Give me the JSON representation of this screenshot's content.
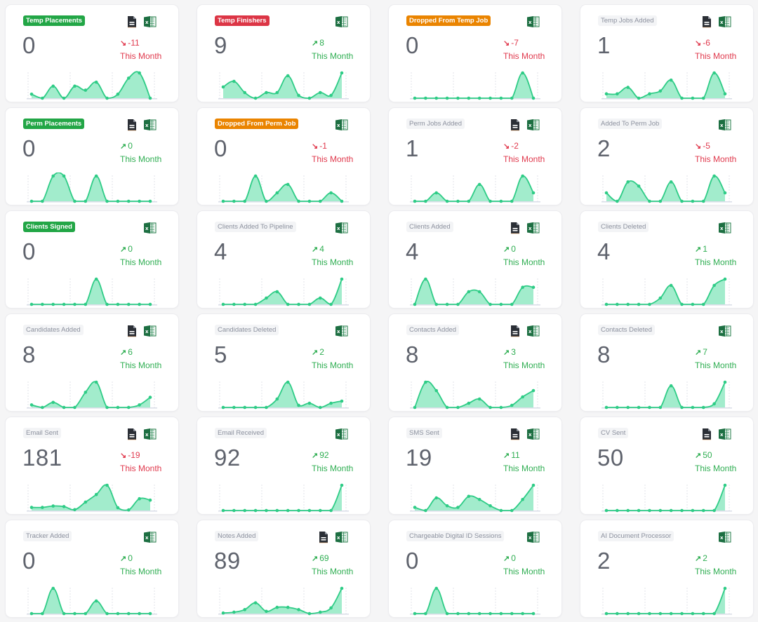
{
  "theme": {
    "badge_green": "#22a646",
    "badge_red": "#dc3545",
    "badge_orange": "#ea8400",
    "trend_up": "#2fae52",
    "trend_down": "#e0394d",
    "chart_line": "#2ecc86",
    "chart_fill": "#9debc9"
  },
  "cards": [
    {
      "title": "Temp Placements",
      "badge": "green",
      "value": "0",
      "trend_dir": "down",
      "trend_arrow": "↘",
      "trend_value": "-11",
      "period": "This Month",
      "icons": [
        "document-icon",
        "excel-icon"
      ],
      "series": [
        1,
        0,
        3,
        0,
        3,
        2,
        4,
        0,
        1,
        5,
        6.3,
        0
      ]
    },
    {
      "title": "Temp Finishers",
      "badge": "red",
      "value": "9",
      "trend_dir": "up",
      "trend_arrow": "↗",
      "trend_value": "8",
      "period": "This Month",
      "icons": [
        "excel-icon"
      ],
      "series": [
        4,
        6,
        2,
        0,
        2,
        2,
        8,
        1,
        0,
        2,
        1,
        9
      ]
    },
    {
      "title": "Dropped From Temp Job",
      "badge": "orange",
      "value": "0",
      "trend_dir": "down",
      "trend_arrow": "↘",
      "trend_value": "-7",
      "period": "This Month",
      "icons": [
        "excel-icon"
      ],
      "series": [
        0,
        0,
        0,
        0,
        0,
        0,
        0,
        0,
        0,
        0,
        7,
        0
      ]
    },
    {
      "title": "Temp Jobs Added",
      "badge": "plain",
      "value": "1",
      "trend_dir": "down",
      "trend_arrow": "↘",
      "trend_value": "-6",
      "period": "This Month",
      "icons": [
        "document-icon",
        "excel-icon"
      ],
      "series": [
        1.2,
        1.2,
        3,
        0,
        1.2,
        2,
        5,
        0,
        0,
        0,
        7,
        1.2
      ]
    },
    {
      "title": "Perm Placements",
      "badge": "green",
      "value": "0",
      "trend_dir": "up",
      "trend_arrow": "↗",
      "trend_value": "0",
      "period": "This Month",
      "icons": [
        "document-icon",
        "excel-icon"
      ],
      "series": [
        0,
        0,
        2,
        2,
        0,
        0,
        2,
        0,
        0,
        0,
        0,
        0
      ]
    },
    {
      "title": "Dropped From Perm Job",
      "badge": "orange",
      "value": "0",
      "trend_dir": "down",
      "trend_arrow": "↘",
      "trend_value": "-1",
      "period": "This Month",
      "icons": [
        "excel-icon"
      ],
      "series": [
        0,
        0,
        0,
        3,
        0,
        1,
        2,
        0,
        0,
        0,
        1,
        0
      ]
    },
    {
      "title": "Perm Jobs Added",
      "badge": "plain",
      "value": "1",
      "trend_dir": "down",
      "trend_arrow": "↘",
      "trend_value": "-2",
      "period": "This Month",
      "icons": [
        "document-icon",
        "excel-icon"
      ],
      "series": [
        0,
        0,
        1,
        0,
        0,
        0,
        2,
        0,
        0,
        0,
        3,
        1
      ]
    },
    {
      "title": "Added To Perm Job",
      "badge": "plain",
      "value": "2",
      "trend_dir": "down",
      "trend_arrow": "↘",
      "trend_value": "-5",
      "period": "This Month",
      "icons": [
        "excel-icon"
      ],
      "series": [
        1,
        0,
        2.3,
        1.8,
        0,
        0,
        2.3,
        0,
        0,
        0,
        3,
        1
      ]
    },
    {
      "title": "Clients Signed",
      "badge": "green",
      "value": "0",
      "trend_dir": "up",
      "trend_arrow": "↗",
      "trend_value": "0",
      "period": "This Month",
      "icons": [
        "excel-icon"
      ],
      "series": [
        0,
        0,
        0,
        0,
        0,
        0,
        1,
        0,
        0,
        0,
        0,
        0
      ]
    },
    {
      "title": "Clients Added To Pipeline",
      "badge": "plain",
      "value": "4",
      "trend_dir": "up",
      "trend_arrow": "↗",
      "trend_value": "4",
      "period": "This Month",
      "icons": [
        "excel-icon"
      ],
      "series": [
        0,
        0,
        0,
        0,
        1,
        2,
        0,
        0,
        0,
        1,
        0,
        4
      ]
    },
    {
      "title": "Clients Added",
      "badge": "plain",
      "value": "4",
      "trend_dir": "up",
      "trend_arrow": "↗",
      "trend_value": "0",
      "period": "This Month",
      "icons": [
        "document-icon",
        "excel-icon"
      ],
      "series": [
        0,
        4,
        0,
        0,
        0,
        2,
        2,
        0,
        0,
        0,
        2.7,
        2.7
      ]
    },
    {
      "title": "Clients Deleted",
      "badge": "plain",
      "value": "4",
      "trend_dir": "up",
      "trend_arrow": "↑",
      "trend_value": "1",
      "period": "This Month",
      "icons": [
        "excel-icon"
      ],
      "series": [
        0,
        0,
        0,
        0,
        0,
        1,
        3,
        0,
        0,
        0,
        3,
        4
      ]
    },
    {
      "title": "Candidates Added",
      "badge": "plain",
      "value": "8",
      "trend_dir": "up",
      "trend_arrow": "↗",
      "trend_value": "6",
      "period": "This Month",
      "icons": [
        "document-icon",
        "excel-icon"
      ],
      "series": [
        1,
        0,
        2,
        0,
        0,
        6,
        10,
        0,
        0,
        0,
        1,
        4
      ]
    },
    {
      "title": "Candidates Deleted",
      "badge": "plain",
      "value": "5",
      "trend_dir": "up",
      "trend_arrow": "↗",
      "trend_value": "2",
      "period": "This Month",
      "icons": [
        "excel-icon"
      ],
      "series": [
        0,
        0,
        0,
        0,
        0,
        2,
        6,
        0.5,
        1,
        0,
        1,
        1.5
      ]
    },
    {
      "title": "Contacts Added",
      "badge": "plain",
      "value": "8",
      "trend_dir": "up",
      "trend_arrow": "↗",
      "trend_value": "3",
      "period": "This Month",
      "icons": [
        "document-icon",
        "excel-icon"
      ],
      "series": [
        0,
        6,
        4,
        0,
        0,
        1,
        2,
        0,
        0,
        0.5,
        2.5,
        4
      ]
    },
    {
      "title": "Contacts Deleted",
      "badge": "plain",
      "value": "8",
      "trend_dir": "up",
      "trend_arrow": "↗",
      "trend_value": "7",
      "period": "This Month",
      "icons": [
        "excel-icon"
      ],
      "series": [
        0,
        0,
        0,
        0,
        0,
        0,
        3,
        0,
        0,
        0,
        0.5,
        3.5
      ]
    },
    {
      "title": "Email Sent",
      "badge": "plain",
      "value": "181",
      "trend_dir": "down",
      "trend_arrow": "↘",
      "trend_value": "-19",
      "period": "This Month",
      "icons": [
        "document-icon",
        "excel-icon"
      ],
      "series": [
        11,
        11,
        16,
        14,
        3,
        30,
        57,
        90,
        10,
        2,
        42,
        37
      ]
    },
    {
      "title": "Email Received",
      "badge": "plain",
      "value": "92",
      "trend_dir": "up",
      "trend_arrow": "↗",
      "trend_value": "92",
      "period": "This Month",
      "icons": [
        "excel-icon"
      ],
      "series": [
        0,
        0,
        0,
        0,
        0,
        0,
        0,
        0,
        0,
        0,
        0,
        92
      ]
    },
    {
      "title": "SMS Sent",
      "badge": "plain",
      "value": "19",
      "trend_dir": "up",
      "trend_arrow": "↗",
      "trend_value": "11",
      "period": "This Month",
      "icons": [
        "document-icon",
        "excel-icon"
      ],
      "series": [
        2,
        0,
        8,
        3,
        2,
        9,
        7,
        3,
        0,
        0,
        7,
        16
      ]
    },
    {
      "title": "CV Sent",
      "badge": "plain",
      "value": "50",
      "trend_dir": "up",
      "trend_arrow": "↗",
      "trend_value": "50",
      "period": "This Month",
      "icons": [
        "document-icon",
        "excel-icon"
      ],
      "series": [
        0,
        0,
        0,
        0,
        0,
        0,
        0,
        0,
        0,
        0,
        0,
        50
      ]
    },
    {
      "title": "Tracker Added",
      "badge": "plain",
      "value": "0",
      "trend_dir": "up",
      "trend_arrow": "↗",
      "trend_value": "0",
      "period": "This Month",
      "icons": [
        "excel-icon"
      ],
      "series": [
        0,
        0,
        2,
        0,
        0,
        0,
        1,
        0,
        0,
        0,
        0,
        0
      ]
    },
    {
      "title": "Notes Added",
      "badge": "plain",
      "value": "89",
      "trend_dir": "up",
      "trend_arrow": "↗",
      "trend_value": "69",
      "period": "This Month",
      "icons": [
        "document-icon",
        "excel-icon"
      ],
      "series": [
        2,
        5,
        14,
        38,
        8,
        22,
        22,
        14,
        0,
        5,
        20,
        89
      ]
    },
    {
      "title": "Chargeable Digital ID Sessions",
      "badge": "plain",
      "value": "0",
      "trend_dir": "up",
      "trend_arrow": "↗",
      "trend_value": "0",
      "period": "This Month",
      "icons": [
        "excel-icon"
      ],
      "series": [
        0,
        0,
        1,
        0,
        0,
        0,
        0,
        0,
        0,
        0,
        0,
        0
      ]
    },
    {
      "title": "AI Document Processor",
      "badge": "plain",
      "value": "2",
      "trend_dir": "up",
      "trend_arrow": "↗",
      "trend_value": "2",
      "period": "This Month",
      "icons": [
        "excel-icon"
      ],
      "series": [
        0,
        0,
        0,
        0,
        0,
        0,
        0,
        0,
        0,
        0,
        0,
        2
      ]
    }
  ]
}
